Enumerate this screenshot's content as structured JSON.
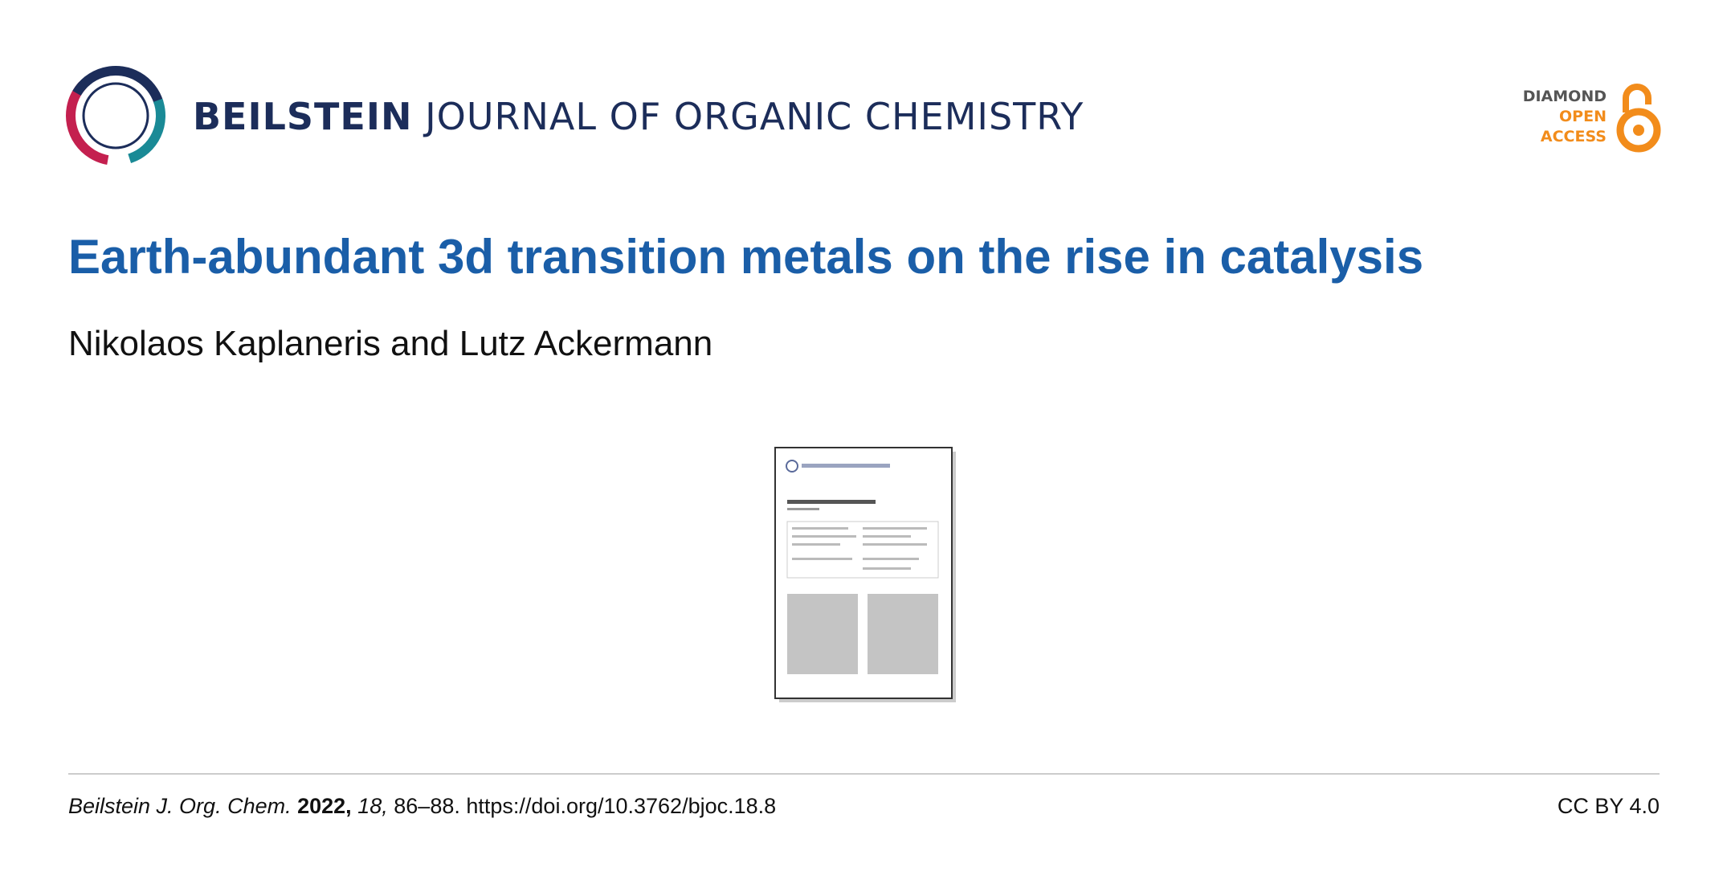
{
  "header": {
    "journal_brand": "BEILSTEIN",
    "journal_name": "JOURNAL OF ORGANIC CHEMISTRY",
    "badge": [
      "DIAMOND",
      "OPEN",
      "ACCESS"
    ]
  },
  "article": {
    "title": "Earth-abundant 3d transition metals on the rise in catalysis",
    "authors": "Nikolaos Kaplaneris and Lutz Ackermann"
  },
  "footer": {
    "journal": "Beilstein J. Org. Chem.",
    "year": "2022,",
    "volume": "18,",
    "pages": "86–88.",
    "doi": "https://doi.org/10.3762/bjoc.18.8",
    "license": "CC BY 4.0"
  }
}
